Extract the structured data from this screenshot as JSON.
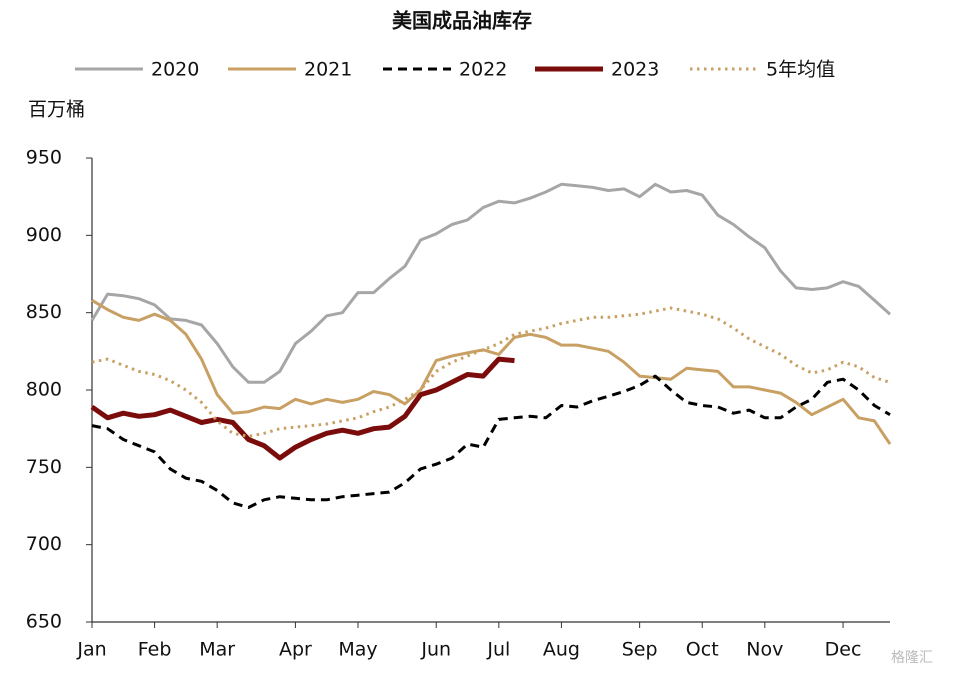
{
  "chart_data": {
    "type": "line",
    "title": "美国成品油库存",
    "y_label": "百万桶",
    "watermark": "格隆汇",
    "categories": [
      "Jan",
      null,
      null,
      null,
      "Feb",
      null,
      null,
      null,
      "Mar",
      null,
      null,
      null,
      null,
      "Apr",
      null,
      null,
      null,
      "May",
      null,
      null,
      null,
      null,
      "Jun",
      null,
      null,
      null,
      "Jul",
      null,
      null,
      null,
      "Aug",
      null,
      null,
      null,
      null,
      "Sep",
      null,
      null,
      null,
      "Oct",
      null,
      null,
      null,
      "Nov",
      null,
      null,
      null,
      null,
      "Dec",
      null,
      null,
      null
    ],
    "ylim": [
      650,
      950
    ],
    "yticks": [
      650,
      700,
      750,
      800,
      850,
      900,
      950
    ],
    "series": [
      {
        "name": "2020",
        "color": "#a6a6a6",
        "line_style": "solid",
        "width": 3,
        "values": [
          845,
          862,
          861,
          859,
          855,
          846,
          845,
          842,
          830,
          815,
          805,
          805,
          812,
          830,
          838,
          848,
          850,
          863,
          863,
          872,
          880,
          897,
          901,
          907,
          910,
          918,
          922,
          921,
          924,
          928,
          933,
          932,
          931,
          929,
          930,
          925,
          933,
          928,
          929,
          926,
          913,
          907,
          899,
          892,
          877,
          866,
          865,
          866,
          870,
          867,
          858,
          849
        ]
      },
      {
        "name": "2021",
        "color": "#c9a063",
        "line_style": "solid",
        "width": 3,
        "values": [
          858,
          852,
          847,
          845,
          849,
          845,
          836,
          820,
          797,
          785,
          786,
          789,
          788,
          794,
          791,
          794,
          792,
          794,
          799,
          797,
          791,
          800,
          819,
          822,
          824,
          826,
          823,
          834,
          836,
          834,
          829,
          829,
          827,
          825,
          818,
          809,
          808,
          807,
          814,
          813,
          812,
          802,
          802,
          800,
          798,
          792,
          784,
          789,
          794,
          782,
          780,
          765
        ]
      },
      {
        "name": "2022",
        "color": "#000000",
        "line_style": "dashed",
        "width": 3,
        "values": [
          777,
          775,
          768,
          764,
          760,
          749,
          743,
          741,
          735,
          727,
          724,
          729,
          731,
          730,
          729,
          729,
          731,
          732,
          733,
          734,
          740,
          749,
          752,
          756,
          765,
          763,
          781,
          782,
          783,
          782,
          790,
          789,
          793,
          796,
          799,
          803,
          809,
          800,
          792,
          790,
          789,
          785,
          787,
          782,
          782,
          789,
          794,
          805,
          807,
          800,
          790,
          784
        ]
      },
      {
        "name": "2023",
        "color": "#7b0c0c",
        "line_style": "solid",
        "width": 5,
        "values": [
          789,
          782,
          785,
          783,
          784,
          787,
          783,
          779,
          781,
          779,
          768,
          764,
          756,
          763,
          768,
          772,
          774,
          772,
          775,
          776,
          783,
          797,
          800,
          805,
          810,
          809,
          820,
          819,
          null,
          null,
          null,
          null,
          null,
          null,
          null,
          null,
          null,
          null,
          null,
          null,
          null,
          null,
          null,
          null,
          null,
          null,
          null,
          null,
          null,
          null,
          null,
          null
        ]
      },
      {
        "name": "5年均值",
        "color": "#c9a063",
        "line_style": "dotted",
        "width": 3,
        "values": [
          818,
          820,
          816,
          812,
          810,
          806,
          800,
          792,
          780,
          772,
          770,
          772,
          775,
          776,
          777,
          778,
          780,
          782,
          786,
          789,
          794,
          800,
          812,
          818,
          822,
          826,
          830,
          836,
          838,
          840,
          843,
          845,
          847,
          847,
          848,
          849,
          851,
          853,
          851,
          849,
          846,
          840,
          833,
          828,
          823,
          816,
          811,
          813,
          818,
          815,
          808,
          805
        ]
      }
    ]
  }
}
